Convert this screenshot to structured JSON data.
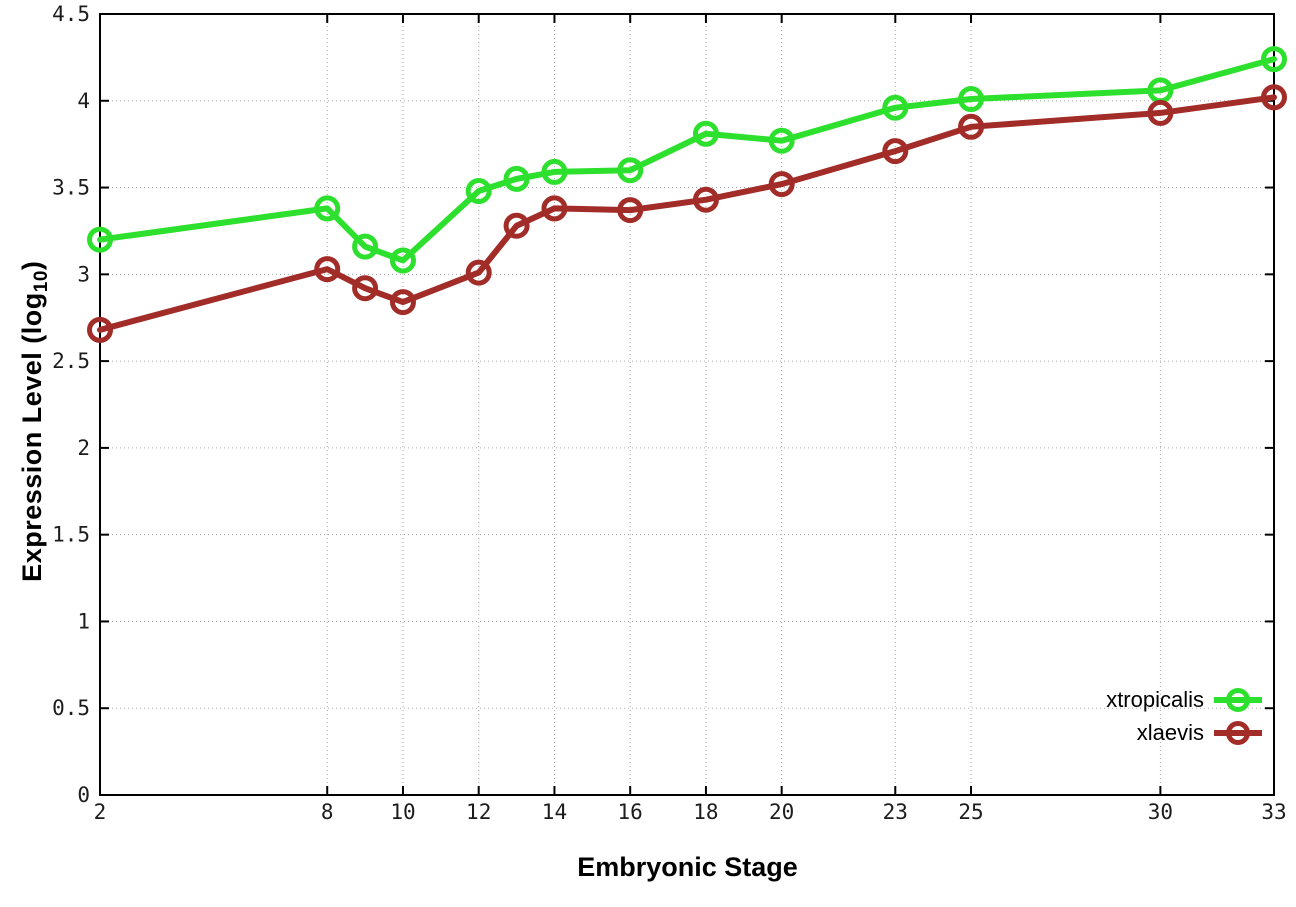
{
  "figure": {
    "background": "#ffffff",
    "border_color": "#000000",
    "grid_color": "#aaaaaa",
    "tick_label_color": "#1c1c1c"
  },
  "axes": {
    "x_title": "Embryonic Stage",
    "y_title_pre": "Expression Level (log",
    "y_title_sub": "10",
    "y_title_post": ")"
  },
  "legend": {
    "entries": [
      {
        "label": "xtropicalis",
        "color": "#2ee02e"
      },
      {
        "label": "xlaevis",
        "color": "#a22c28"
      }
    ]
  },
  "chart_data": {
    "type": "line",
    "title": "",
    "xlabel": "Embryonic Stage",
    "ylabel": "Expression Level (log10)",
    "x": [
      2,
      8,
      9,
      10,
      12,
      13,
      14,
      16,
      18,
      20,
      23,
      25,
      30,
      33
    ],
    "series": [
      {
        "name": "xtropicalis",
        "color": "#2ee02e",
        "values": [
          3.2,
          3.38,
          3.16,
          3.08,
          3.48,
          3.55,
          3.59,
          3.6,
          3.81,
          3.77,
          3.96,
          4.01,
          4.06,
          4.24
        ]
      },
      {
        "name": "xlaevis",
        "color": "#a22c28",
        "values": [
          2.68,
          3.03,
          2.92,
          2.84,
          3.01,
          3.28,
          3.38,
          3.37,
          3.43,
          3.52,
          3.71,
          3.85,
          3.93,
          4.02
        ]
      }
    ],
    "xlim": [
      2,
      33
    ],
    "ylim": [
      0,
      4.5
    ],
    "x_tick_values": [
      2,
      8,
      10,
      12,
      14,
      16,
      18,
      20,
      23,
      25,
      30,
      33
    ],
    "x_tick_labels": [
      "2",
      "8",
      "10",
      "12",
      "14",
      "16",
      "18",
      "20",
      "23",
      "25",
      "30",
      "33"
    ],
    "y_tick_values": [
      0,
      0.5,
      1,
      1.5,
      2,
      2.5,
      3,
      3.5,
      4,
      4.5
    ],
    "y_tick_labels": [
      "0",
      "0.5",
      "1",
      "1.5",
      "2",
      "2.5",
      "3",
      "3.5",
      "4",
      "4.5"
    ],
    "grid": true,
    "legend_position": "bottom-right",
    "marker": "open-circle"
  }
}
